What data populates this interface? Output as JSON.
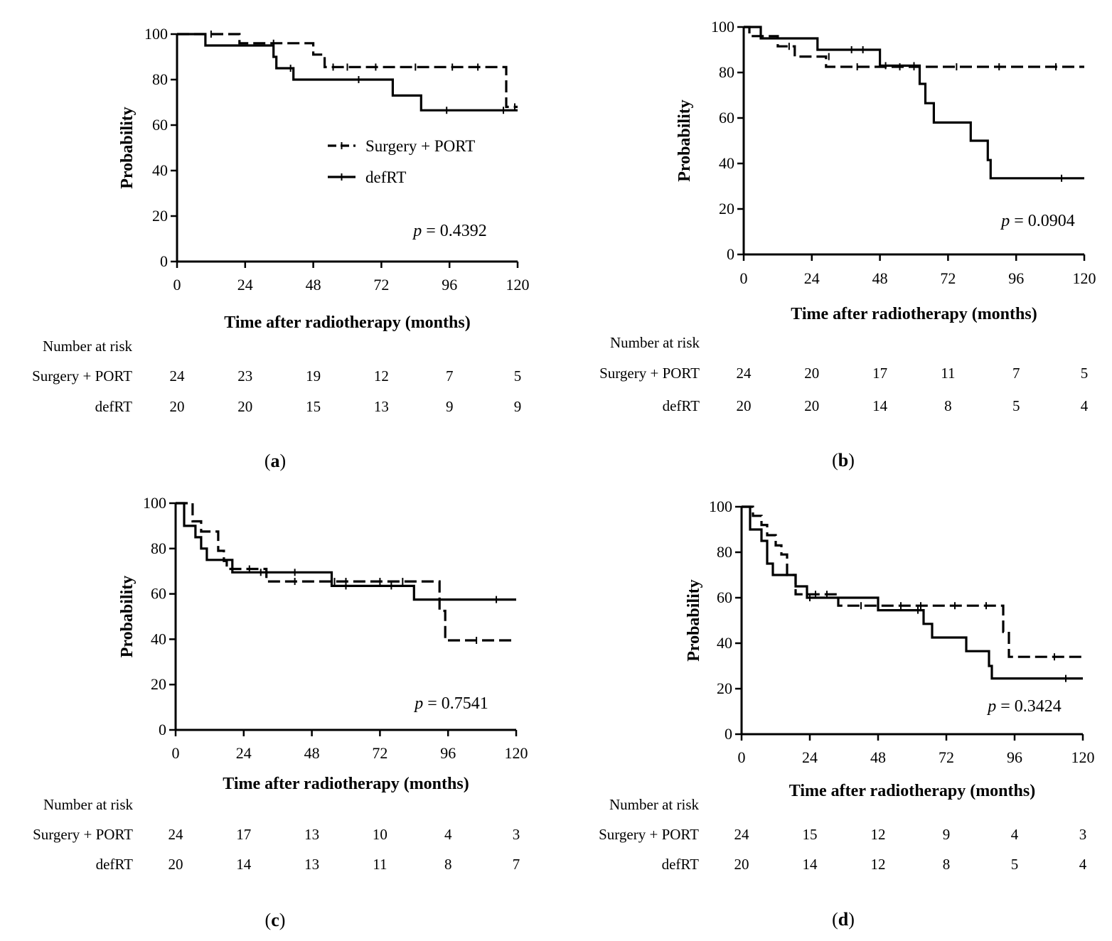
{
  "figure": {
    "legend": {
      "dashed_label": "Surgery + PORT",
      "solid_label": "defRT"
    },
    "risk_title": "Number at risk",
    "p_prefix": "p",
    "p_equals": " = "
  },
  "chart_data": [
    {
      "id": "a",
      "panel_label": "a",
      "type": "line",
      "subtype": "kaplan-meier step",
      "xlabel": "Time after radiotherapy (months)",
      "ylabel": "Probability",
      "xlim": [
        0,
        120
      ],
      "ylim": [
        0,
        100
      ],
      "xticks": [
        0,
        24,
        48,
        72,
        96,
        120
      ],
      "yticks": [
        0,
        20,
        40,
        60,
        80,
        100
      ],
      "p_value": "0.4392",
      "show_legend": true,
      "series": [
        {
          "name": "Surgery + PORT",
          "style": "dashed",
          "steps": [
            [
              0,
              100
            ],
            [
              22,
              100
            ],
            [
              22,
              96
            ],
            [
              48,
              96
            ],
            [
              48,
              91
            ],
            [
              52,
              91
            ],
            [
              52,
              85.5
            ],
            [
              116,
              85.5
            ],
            [
              116,
              68
            ],
            [
              120,
              68
            ]
          ],
          "censor": [
            [
              12,
              100
            ],
            [
              34,
              96
            ],
            [
              55,
              85.5
            ],
            [
              60,
              85.5
            ],
            [
              70,
              85.5
            ],
            [
              84,
              85.5
            ],
            [
              97,
              85.5
            ],
            [
              106,
              85.5
            ],
            [
              119,
              68
            ]
          ]
        },
        {
          "name": "defRT",
          "style": "solid",
          "steps": [
            [
              0,
              100
            ],
            [
              10,
              100
            ],
            [
              10,
              95
            ],
            [
              34,
              95
            ],
            [
              34,
              90
            ],
            [
              35,
              90
            ],
            [
              35,
              85
            ],
            [
              41,
              85
            ],
            [
              41,
              80
            ],
            [
              76,
              80
            ],
            [
              76,
              73
            ],
            [
              86,
              73
            ],
            [
              86,
              66.5
            ],
            [
              120,
              66.5
            ]
          ],
          "censor": [
            [
              40,
              85
            ],
            [
              64,
              80
            ],
            [
              95,
              66.5
            ],
            [
              115,
              66.5
            ]
          ]
        }
      ],
      "risk_table": {
        "times": [
          0,
          24,
          48,
          72,
          96,
          120
        ],
        "rows": [
          {
            "label": "Surgery + PORT",
            "values": [
              "24",
              "23",
              "19",
              "12",
              "7",
              "5"
            ]
          },
          {
            "label": "defRT",
            "values": [
              "20",
              "20",
              "15",
              "13",
              "9",
              "9"
            ]
          }
        ]
      }
    },
    {
      "id": "b",
      "panel_label": "b",
      "type": "line",
      "subtype": "kaplan-meier step",
      "xlabel": "Time after radiotherapy (months)",
      "ylabel": "Probability",
      "xlim": [
        0,
        120
      ],
      "ylim": [
        0,
        100
      ],
      "xticks": [
        0,
        24,
        48,
        72,
        96,
        120
      ],
      "yticks": [
        0,
        20,
        40,
        60,
        80,
        100
      ],
      "p_value": "0.0904",
      "show_legend": false,
      "series": [
        {
          "name": "Surgery + PORT",
          "style": "dashed",
          "steps": [
            [
              0,
              100
            ],
            [
              2,
              100
            ],
            [
              2,
              96
            ],
            [
              12,
              96
            ],
            [
              12,
              91.5
            ],
            [
              18,
              91.5
            ],
            [
              18,
              87
            ],
            [
              29,
              87
            ],
            [
              29,
              82.5
            ],
            [
              120,
              82.5
            ]
          ],
          "censor": [
            [
              16,
              91.5
            ],
            [
              30,
              87
            ],
            [
              40,
              82.5
            ],
            [
              55,
              82.5
            ],
            [
              60,
              82.5
            ],
            [
              75,
              82.5
            ],
            [
              90,
              82.5
            ],
            [
              110,
              82.5
            ]
          ]
        },
        {
          "name": "defRT",
          "style": "solid",
          "steps": [
            [
              0,
              100
            ],
            [
              6,
              100
            ],
            [
              6,
              95
            ],
            [
              26,
              95
            ],
            [
              26,
              90
            ],
            [
              48,
              90
            ],
            [
              48,
              83
            ],
            [
              62,
              83
            ],
            [
              62,
              75
            ],
            [
              64,
              75
            ],
            [
              64,
              66.5
            ],
            [
              67,
              66.5
            ],
            [
              67,
              58
            ],
            [
              80,
              58
            ],
            [
              80,
              50
            ],
            [
              86,
              50
            ],
            [
              86,
              41.5
            ],
            [
              87,
              41.5
            ],
            [
              87,
              33.5
            ],
            [
              120,
              33.5
            ]
          ],
          "censor": [
            [
              38,
              90
            ],
            [
              42,
              90
            ],
            [
              50,
              83
            ],
            [
              60,
              83
            ],
            [
              112,
              33.5
            ]
          ]
        }
      ],
      "risk_table": {
        "times": [
          0,
          24,
          48,
          72,
          96,
          120
        ],
        "rows": [
          {
            "label": "Surgery + PORT",
            "values": [
              "24",
              "20",
              "17",
              "11",
              "7",
              "5"
            ]
          },
          {
            "label": "defRT",
            "values": [
              "20",
              "20",
              "14",
              "8",
              "5",
              "4"
            ]
          }
        ]
      }
    },
    {
      "id": "c",
      "panel_label": "c",
      "type": "line",
      "subtype": "kaplan-meier step",
      "xlabel": "Time after radiotherapy (months)",
      "ylabel": "Probability",
      "xlim": [
        0,
        120
      ],
      "ylim": [
        0,
        100
      ],
      "xticks": [
        0,
        24,
        48,
        72,
        96,
        120
      ],
      "yticks": [
        0,
        20,
        40,
        60,
        80,
        100
      ],
      "p_value": "0.7541",
      "show_legend": false,
      "series": [
        {
          "name": "Surgery + PORT",
          "style": "dashed",
          "steps": [
            [
              0,
              100
            ],
            [
              6,
              100
            ],
            [
              6,
              92
            ],
            [
              9,
              92
            ],
            [
              9,
              87.5
            ],
            [
              15,
              87.5
            ],
            [
              15,
              79
            ],
            [
              17,
              79
            ],
            [
              17,
              74.5
            ],
            [
              18,
              74.5
            ],
            [
              18,
              71
            ],
            [
              32,
              71
            ],
            [
              32,
              65.5
            ],
            [
              93,
              65.5
            ],
            [
              93,
              52.5
            ],
            [
              95,
              52.5
            ],
            [
              95,
              39.5
            ],
            [
              120,
              39.5
            ]
          ],
          "censor": [
            [
              20,
              71
            ],
            [
              26,
              71
            ],
            [
              42,
              65.5
            ],
            [
              56,
              65.5
            ],
            [
              60,
              65.5
            ],
            [
              72,
              65.5
            ],
            [
              80,
              65.5
            ],
            [
              106,
              39.5
            ]
          ]
        },
        {
          "name": "defRT",
          "style": "solid",
          "steps": [
            [
              0,
              100
            ],
            [
              3,
              100
            ],
            [
              3,
              90
            ],
            [
              7,
              90
            ],
            [
              7,
              85
            ],
            [
              9,
              85
            ],
            [
              9,
              80
            ],
            [
              11,
              80
            ],
            [
              11,
              75
            ],
            [
              20,
              75
            ],
            [
              20,
              69.5
            ],
            [
              55,
              69.5
            ],
            [
              55,
              63.5
            ],
            [
              84,
              63.5
            ],
            [
              84,
              57.5
            ],
            [
              120,
              57.5
            ]
          ],
          "censor": [
            [
              30,
              69.5
            ],
            [
              42,
              69.5
            ],
            [
              60,
              63.5
            ],
            [
              76,
              63.5
            ],
            [
              113,
              57.5
            ]
          ]
        }
      ],
      "risk_table": {
        "times": [
          0,
          24,
          48,
          72,
          96,
          120
        ],
        "rows": [
          {
            "label": "Surgery + PORT",
            "values": [
              "24",
              "17",
              "13",
              "10",
              "4",
              "3"
            ]
          },
          {
            "label": "defRT",
            "values": [
              "20",
              "14",
              "13",
              "11",
              "8",
              "7"
            ]
          }
        ]
      }
    },
    {
      "id": "d",
      "panel_label": "d",
      "type": "line",
      "subtype": "kaplan-meier step",
      "xlabel": "Time after radiotherapy (months)",
      "ylabel": "Probability",
      "xlim": [
        0,
        120
      ],
      "ylim": [
        0,
        100
      ],
      "xticks": [
        0,
        24,
        48,
        72,
        96,
        120
      ],
      "yticks": [
        0,
        20,
        40,
        60,
        80,
        100
      ],
      "p_value": "0.3424",
      "show_legend": false,
      "series": [
        {
          "name": "Surgery + PORT",
          "style": "dashed",
          "steps": [
            [
              0,
              100
            ],
            [
              4,
              100
            ],
            [
              4,
              96
            ],
            [
              7,
              96
            ],
            [
              7,
              92
            ],
            [
              9,
              92
            ],
            [
              9,
              87.5
            ],
            [
              12,
              87.5
            ],
            [
              12,
              83
            ],
            [
              14,
              83
            ],
            [
              14,
              79
            ],
            [
              16,
              79
            ],
            [
              16,
              70
            ],
            [
              19,
              70
            ],
            [
              19,
              61.5
            ],
            [
              34,
              61.5
            ],
            [
              34,
              56.5
            ],
            [
              92,
              56.5
            ],
            [
              92,
              45
            ],
            [
              94,
              45
            ],
            [
              94,
              34
            ],
            [
              120,
              34
            ]
          ],
          "censor": [
            [
              26,
              61.5
            ],
            [
              30,
              61.5
            ],
            [
              42,
              56.5
            ],
            [
              56,
              56.5
            ],
            [
              63,
              56.5
            ],
            [
              75,
              56.5
            ],
            [
              86,
              56.5
            ],
            [
              110,
              34
            ]
          ]
        },
        {
          "name": "defRT",
          "style": "solid",
          "steps": [
            [
              0,
              100
            ],
            [
              3,
              100
            ],
            [
              3,
              90
            ],
            [
              7,
              90
            ],
            [
              7,
              85
            ],
            [
              9,
              85
            ],
            [
              9,
              75
            ],
            [
              11,
              75
            ],
            [
              11,
              70
            ],
            [
              19,
              70
            ],
            [
              19,
              65
            ],
            [
              23,
              65
            ],
            [
              23,
              60
            ],
            [
              48,
              60
            ],
            [
              48,
              54.5
            ],
            [
              64,
              54.5
            ],
            [
              64,
              48.5
            ],
            [
              67,
              48.5
            ],
            [
              67,
              42.5
            ],
            [
              79,
              42.5
            ],
            [
              79,
              36.5
            ],
            [
              87,
              36.5
            ],
            [
              87,
              30
            ],
            [
              88,
              30
            ],
            [
              88,
              24.5
            ],
            [
              120,
              24.5
            ]
          ],
          "censor": [
            [
              24,
              60
            ],
            [
              62,
              54.5
            ],
            [
              114,
              24.5
            ]
          ]
        }
      ],
      "risk_table": {
        "times": [
          0,
          24,
          48,
          72,
          96,
          120
        ],
        "rows": [
          {
            "label": "Surgery + PORT",
            "values": [
              "24",
              "15",
              "12",
              "9",
              "4",
              "3"
            ]
          },
          {
            "label": "defRT",
            "values": [
              "20",
              "14",
              "12",
              "8",
              "5",
              "4"
            ]
          }
        ]
      }
    }
  ]
}
